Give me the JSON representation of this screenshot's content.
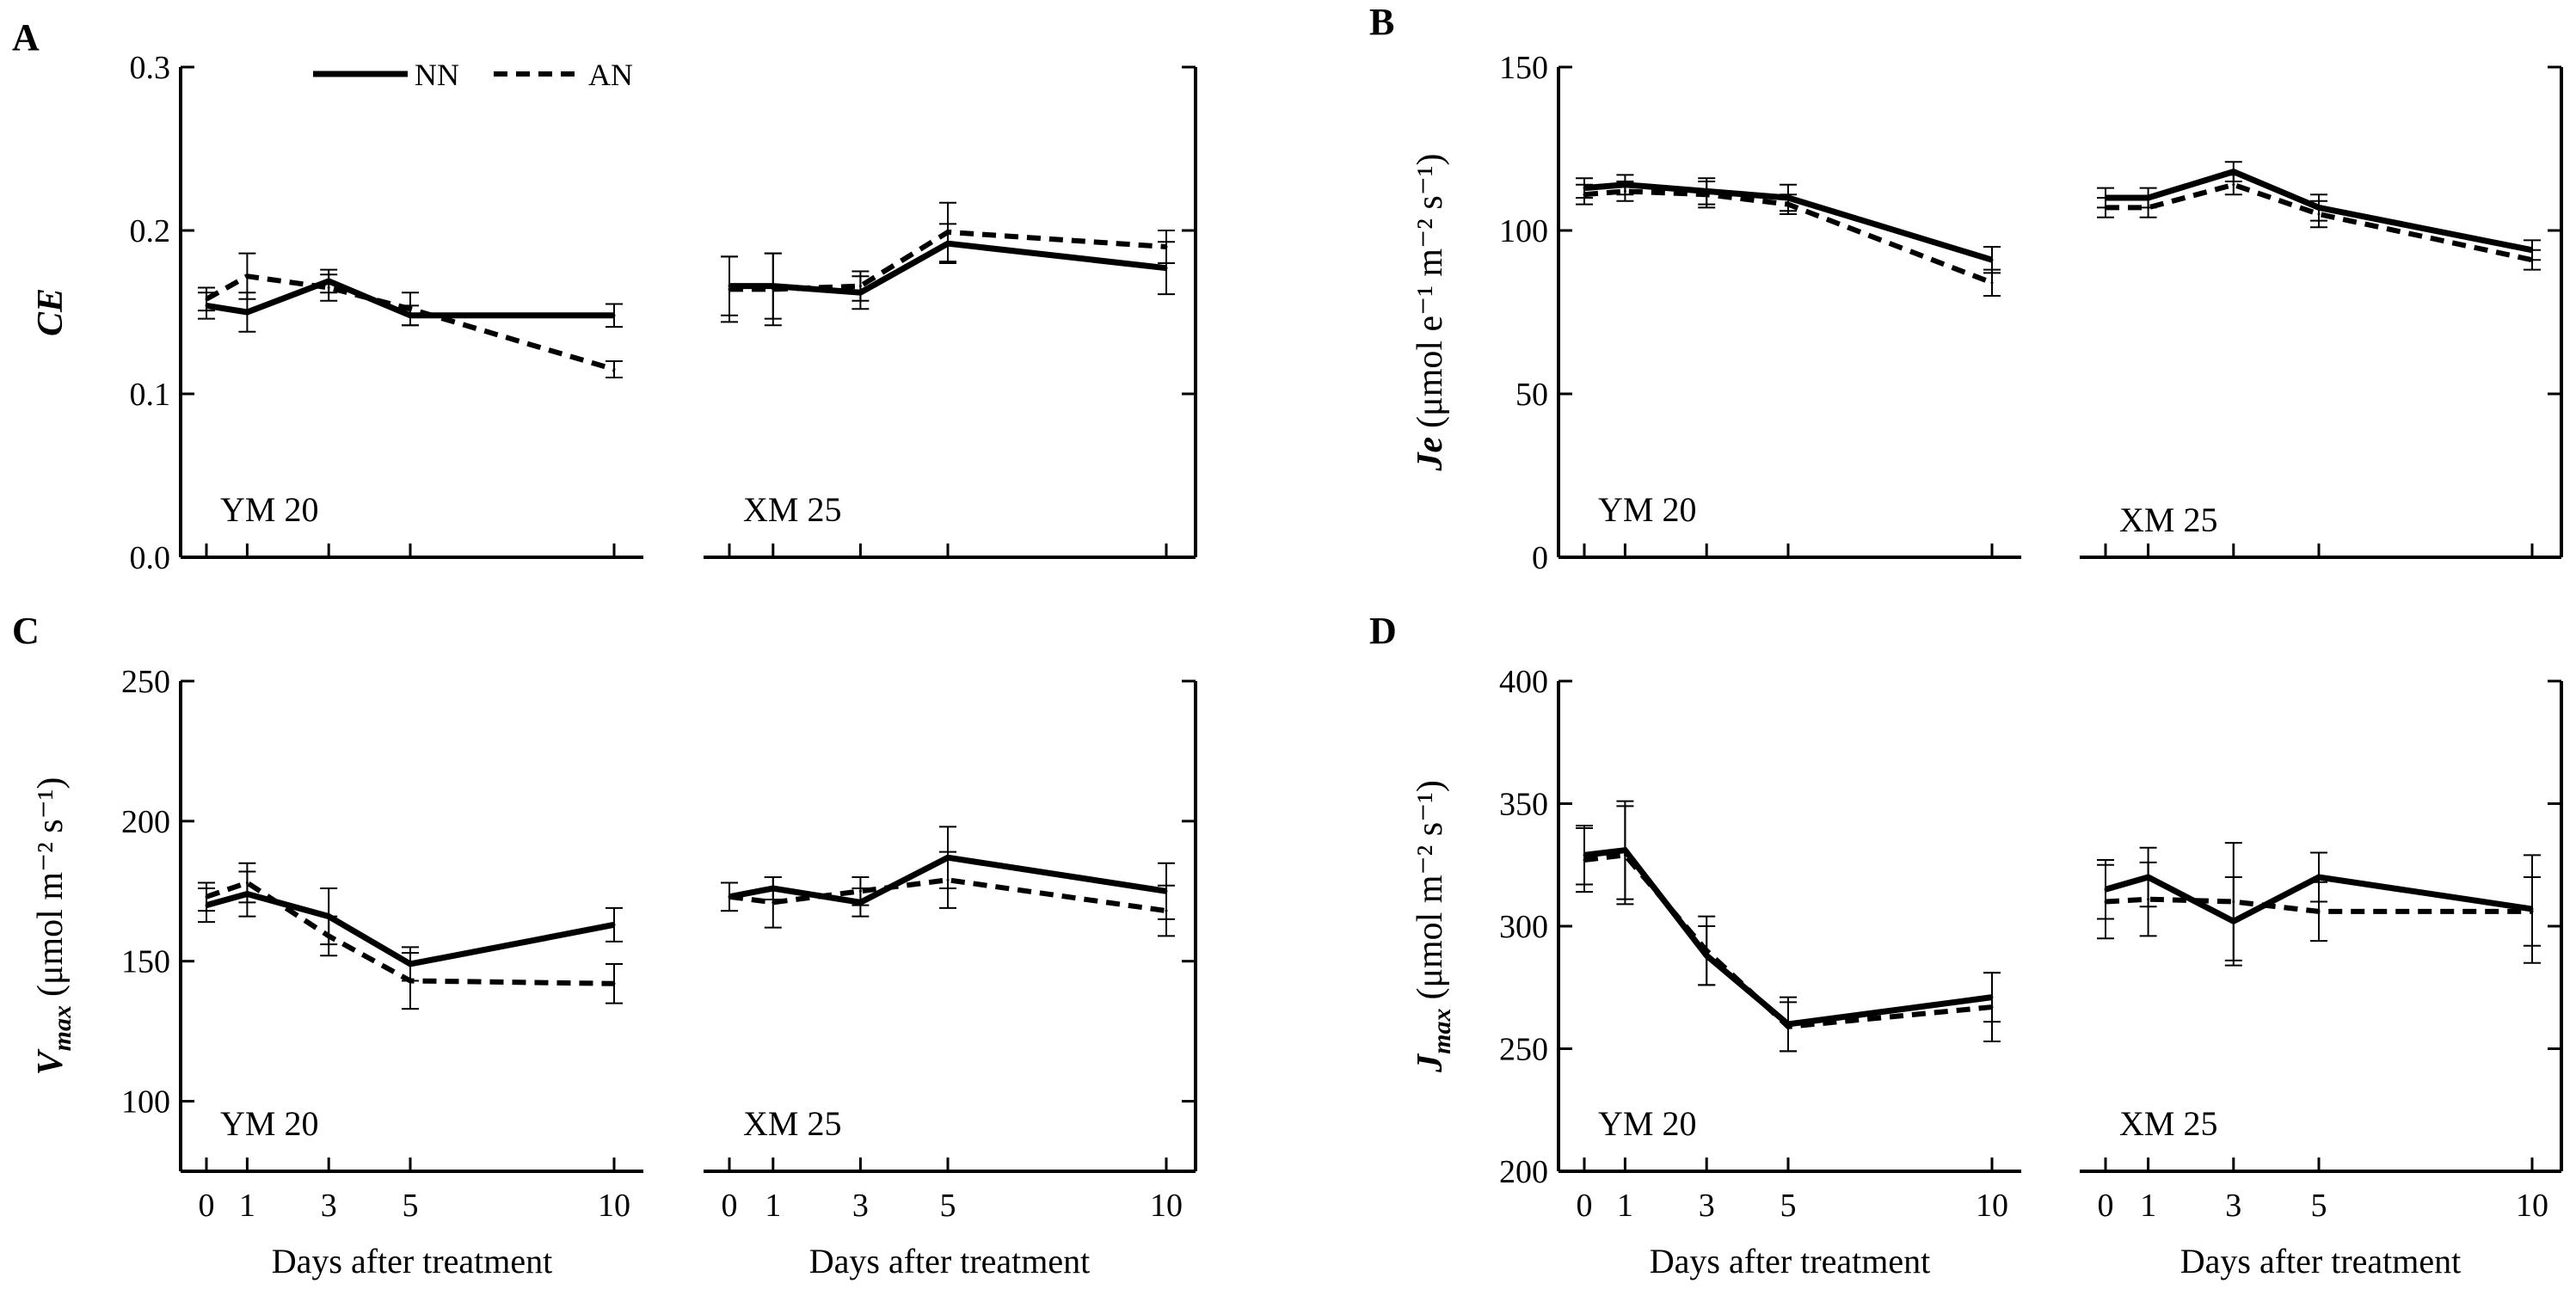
{
  "legend": {
    "nn_label": "NN",
    "an_label": "AN"
  },
  "xlabel": "Days after treatment",
  "colors": {
    "lines": "#000000",
    "background": "#ffffff"
  },
  "chart_data": [
    {
      "id": "A",
      "letter": "A",
      "type": "line",
      "ylabel": {
        "main": "CE",
        "sub": "",
        "unit": ""
      },
      "ylim": [
        0,
        0.3
      ],
      "yticks": [
        0.0,
        0.1,
        0.2,
        0.3
      ],
      "ytick_labels": [
        "0.0",
        "0.1",
        "0.2",
        "0.3"
      ],
      "xlim": [
        0,
        10
      ],
      "xticks": [
        0,
        1,
        3,
        5,
        10
      ],
      "subpanels": [
        {
          "cultivar": "YM 20",
          "x": [
            0,
            1,
            3,
            5,
            10
          ],
          "series": [
            {
              "name": "NN",
              "values": [
                0.154,
                0.15,
                0.169,
                0.148,
                0.148
              ],
              "errors": [
                0.008,
                0.012,
                0.007,
                0.006,
                0.007
              ]
            },
            {
              "name": "AN",
              "values": [
                0.158,
                0.172,
                0.165,
                0.152,
                0.115
              ],
              "errors": [
                0.007,
                0.014,
                0.008,
                0.01,
                0.005
              ]
            }
          ]
        },
        {
          "cultivar": "XM 25",
          "x": [
            0,
            1,
            3,
            5,
            10
          ],
          "series": [
            {
              "name": "NN",
              "values": [
                0.166,
                0.166,
                0.162,
                0.192,
                0.177
              ],
              "errors": [
                0.018,
                0.02,
                0.01,
                0.012,
                0.016
              ]
            },
            {
              "name": "AN",
              "values": [
                0.164,
                0.164,
                0.166,
                0.199,
                0.19
              ],
              "errors": [
                0.02,
                0.022,
                0.009,
                0.018,
                0.01
              ]
            }
          ]
        }
      ]
    },
    {
      "id": "B",
      "letter": "B",
      "type": "line",
      "ylabel": {
        "main": "Je",
        "sub": "",
        "unit": "(μmol e⁻¹ m⁻² s⁻¹)"
      },
      "ylim": [
        0,
        150
      ],
      "yticks": [
        0,
        50,
        100,
        150
      ],
      "ytick_labels": [
        "0",
        "50",
        "100",
        "150"
      ],
      "xlim": [
        0,
        10
      ],
      "xticks": [
        0,
        1,
        3,
        5,
        10
      ],
      "subpanels": [
        {
          "cultivar": "YM 20",
          "x": [
            0,
            1,
            3,
            5,
            10
          ],
          "series": [
            {
              "name": "NN",
              "values": [
                113,
                114,
                112,
                110,
                91
              ],
              "errors": [
                3,
                3,
                4,
                4,
                4
              ]
            },
            {
              "name": "AN",
              "values": [
                111,
                112,
                111,
                108,
                84
              ],
              "errors": [
                3,
                3,
                4,
                3,
                4
              ]
            }
          ]
        },
        {
          "cultivar": "XM 25",
          "x": [
            0,
            1,
            3,
            5,
            10
          ],
          "series": [
            {
              "name": "NN",
              "values": [
                110,
                110,
                118,
                107,
                94
              ],
              "errors": [
                3,
                3,
                3,
                4,
                3
              ]
            },
            {
              "name": "AN",
              "values": [
                107,
                107,
                114,
                105,
                91
              ],
              "errors": [
                3,
                3,
                3,
                4,
                3
              ]
            }
          ]
        }
      ]
    },
    {
      "id": "C",
      "letter": "C",
      "type": "line",
      "ylabel": {
        "main": "V",
        "sub": "max",
        "unit": "(μmol m⁻² s⁻¹)"
      },
      "ylim": [
        75,
        250
      ],
      "yticks": [
        100,
        150,
        200,
        250
      ],
      "ytick_labels": [
        "100",
        "150",
        "200",
        "250"
      ],
      "xlim": [
        0,
        10
      ],
      "xticks": [
        0,
        1,
        3,
        5,
        10
      ],
      "xtick_labels": [
        "0",
        "1",
        "3",
        "5",
        "10"
      ],
      "subpanels": [
        {
          "cultivar": "YM 20",
          "x": [
            0,
            1,
            3,
            5,
            10
          ],
          "series": [
            {
              "name": "NN",
              "values": [
                170,
                174,
                166,
                149,
                163
              ],
              "errors": [
                6,
                8,
                10,
                6,
                6
              ]
            },
            {
              "name": "AN",
              "values": [
                173,
                178,
                159,
                143,
                142
              ],
              "errors": [
                5,
                7,
                7,
                10,
                7
              ]
            }
          ]
        },
        {
          "cultivar": "XM 25",
          "x": [
            0,
            1,
            3,
            5,
            10
          ],
          "series": [
            {
              "name": "NN",
              "values": [
                173,
                176,
                171,
                187,
                175
              ],
              "errors": [
                5,
                4,
                5,
                11,
                10
              ]
            },
            {
              "name": "AN",
              "values": [
                173,
                171,
                175,
                179,
                168
              ],
              "errors": [
                5,
                9,
                5,
                10,
                9
              ]
            }
          ]
        }
      ]
    },
    {
      "id": "D",
      "letter": "D",
      "type": "line",
      "ylabel": {
        "main": "J",
        "sub": "max",
        "unit": "(μmol  m⁻² s⁻¹)"
      },
      "ylim": [
        200,
        400
      ],
      "yticks": [
        200,
        250,
        300,
        350,
        400
      ],
      "ytick_labels": [
        "200",
        "250",
        "300",
        "350",
        "400"
      ],
      "xlim": [
        0,
        10
      ],
      "xticks": [
        0,
        1,
        3,
        5,
        10
      ],
      "xtick_labels": [
        "0",
        "1",
        "3",
        "5",
        "10"
      ],
      "subpanels": [
        {
          "cultivar": "YM 20",
          "x": [
            0,
            1,
            3,
            5,
            10
          ],
          "series": [
            {
              "name": "NN",
              "values": [
                329,
                331,
                288,
                260,
                271
              ],
              "errors": [
                12,
                20,
                12,
                11,
                10
              ]
            },
            {
              "name": "AN",
              "values": [
                327,
                329,
                290,
                259,
                267
              ],
              "errors": [
                13,
                20,
                14,
                10,
                14
              ]
            }
          ]
        },
        {
          "cultivar": "XM 25",
          "x": [
            0,
            1,
            3,
            5,
            10
          ],
          "series": [
            {
              "name": "NN",
              "values": [
                315,
                320,
                302,
                320,
                307
              ],
              "errors": [
                12,
                12,
                18,
                10,
                22
              ]
            },
            {
              "name": "AN",
              "values": [
                310,
                311,
                310,
                306,
                306
              ],
              "errors": [
                15,
                15,
                24,
                12,
                14
              ]
            }
          ]
        }
      ]
    }
  ]
}
